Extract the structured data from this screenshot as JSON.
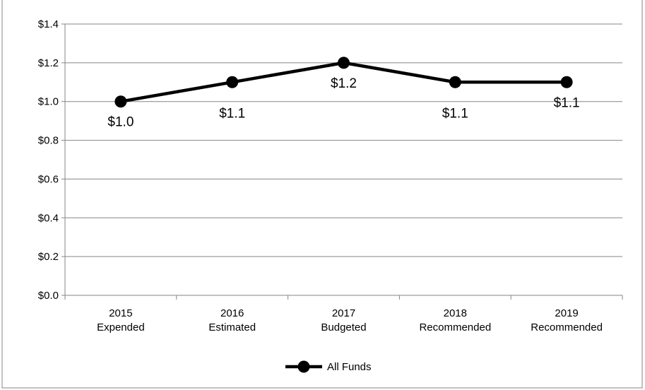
{
  "chart_data": {
    "type": "line",
    "title": "",
    "xlabel": "",
    "ylabel": "",
    "categories": [
      [
        "2015",
        "Expended"
      ],
      [
        "2016",
        "Estimated"
      ],
      [
        "2017",
        "Budgeted"
      ],
      [
        "2018",
        "Recommended"
      ],
      [
        "2019",
        "Recommended"
      ]
    ],
    "series": [
      {
        "name": "All Funds",
        "values": [
          1.0,
          1.1,
          1.2,
          1.1,
          1.1
        ],
        "data_labels": [
          "$1.0",
          "$1.1",
          "$1.2",
          "$1.1",
          "$1.1"
        ],
        "color": "#000000"
      }
    ],
    "ylim": [
      0,
      1.4
    ],
    "y_ticks": [
      0.0,
      0.2,
      0.4,
      0.6,
      0.8,
      1.0,
      1.2,
      1.4
    ],
    "y_tick_labels": [
      "$0.0",
      "$0.2",
      "$0.4",
      "$0.6",
      "$0.8",
      "$1.0",
      "$1.2",
      "$1.4"
    ],
    "grid": true,
    "legend_position": "bottom-center",
    "colors": {
      "gridline": "#868686",
      "axis": "#868686",
      "line": "#000000",
      "background": "#ffffff",
      "border": "#868686"
    }
  }
}
